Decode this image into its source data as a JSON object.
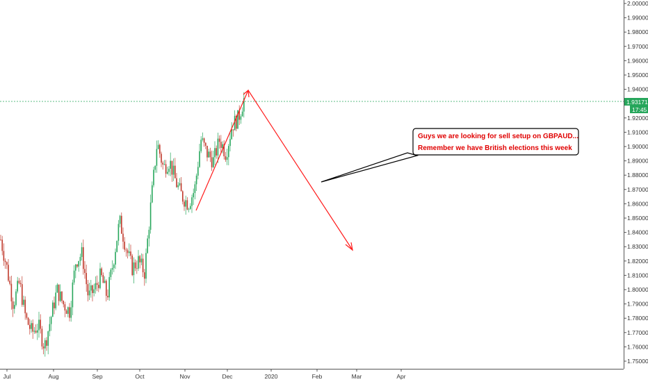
{
  "chart_data": {
    "type": "candlestick",
    "title": "",
    "xlabel": "",
    "ylabel": "",
    "x_tick_labels": [
      "Jul",
      "Aug",
      "Sep",
      "Oct",
      "Nov",
      "Dec",
      "2020",
      "Feb",
      "Mar",
      "Apr"
    ],
    "y_tick_labels": [
      "2.00000",
      "1.99000",
      "1.98000",
      "1.97000",
      "1.96000",
      "1.95000",
      "1.94000",
      "1.93000",
      "1.92000",
      "1.91000",
      "1.90000",
      "1.89000",
      "1.88000",
      "1.87000",
      "1.86000",
      "1.85000",
      "1.84000",
      "1.83000",
      "1.82000",
      "1.81000",
      "1.80000",
      "1.79000",
      "1.78000",
      "1.77000",
      "1.76000",
      "1.75000"
    ],
    "ylim": [
      1.745,
      2.0
    ],
    "grid": false,
    "current_price": {
      "label": "1.93171",
      "value": 1.93171,
      "color": "#26a65b"
    },
    "countdown": "17:45",
    "up_color": "#26a65b",
    "down_color": "#c0392b",
    "series": [
      {
        "close_path_points": [
          [
            "Jul",
            1.835
          ],
          [
            "Jul",
            1.815
          ],
          [
            "Jul",
            1.79
          ],
          [
            "Jul",
            1.805
          ],
          [
            "Jul",
            1.78
          ],
          [
            "Jul",
            1.77
          ],
          [
            "Aug",
            1.775
          ],
          [
            "Aug",
            1.76
          ],
          [
            "Aug",
            1.78
          ],
          [
            "Aug",
            1.8
          ],
          [
            "Aug",
            1.79
          ],
          [
            "Aug",
            1.785
          ],
          [
            "Aug",
            1.82
          ],
          [
            "Sep",
            1.825
          ],
          [
            "Sep",
            1.795
          ],
          [
            "Sep",
            1.8
          ],
          [
            "Sep",
            1.81
          ],
          [
            "Sep",
            1.795
          ],
          [
            "Sep",
            1.82
          ],
          [
            "Sep",
            1.848
          ],
          [
            "Sep",
            1.83
          ],
          [
            "Oct",
            1.815
          ],
          [
            "Oct",
            1.82
          ],
          [
            "Oct",
            1.812
          ],
          [
            "Oct",
            1.86
          ],
          [
            "Oct",
            1.903
          ],
          [
            "Oct",
            1.885
          ],
          [
            "Oct",
            1.89
          ],
          [
            "Oct",
            1.875
          ],
          [
            "Oct",
            1.865
          ],
          [
            "Nov",
            1.86
          ],
          [
            "Nov",
            1.87
          ],
          [
            "Nov",
            1.905
          ],
          [
            "Nov",
            1.895
          ],
          [
            "Nov",
            1.89
          ],
          [
            "Nov",
            1.905
          ],
          [
            "Dec",
            1.895
          ],
          [
            "Dec",
            1.915
          ],
          [
            "Dec",
            1.92
          ],
          [
            "Dec",
            1.935
          ]
        ]
      }
    ],
    "annotations": {
      "text_lines": [
        "Guys we are looking for sell setup on GBPAUD...",
        "Remember we have British elections this week"
      ],
      "text_color": "#e00000",
      "arrow_color": "#ff1a1a",
      "up_leg": {
        "from": [
          "Nov",
          1.855
        ],
        "to": [
          "Dec",
          1.94
        ]
      },
      "down_leg": {
        "from": [
          "Dec",
          1.94
        ],
        "to": [
          "Feb",
          1.827
        ]
      }
    }
  }
}
